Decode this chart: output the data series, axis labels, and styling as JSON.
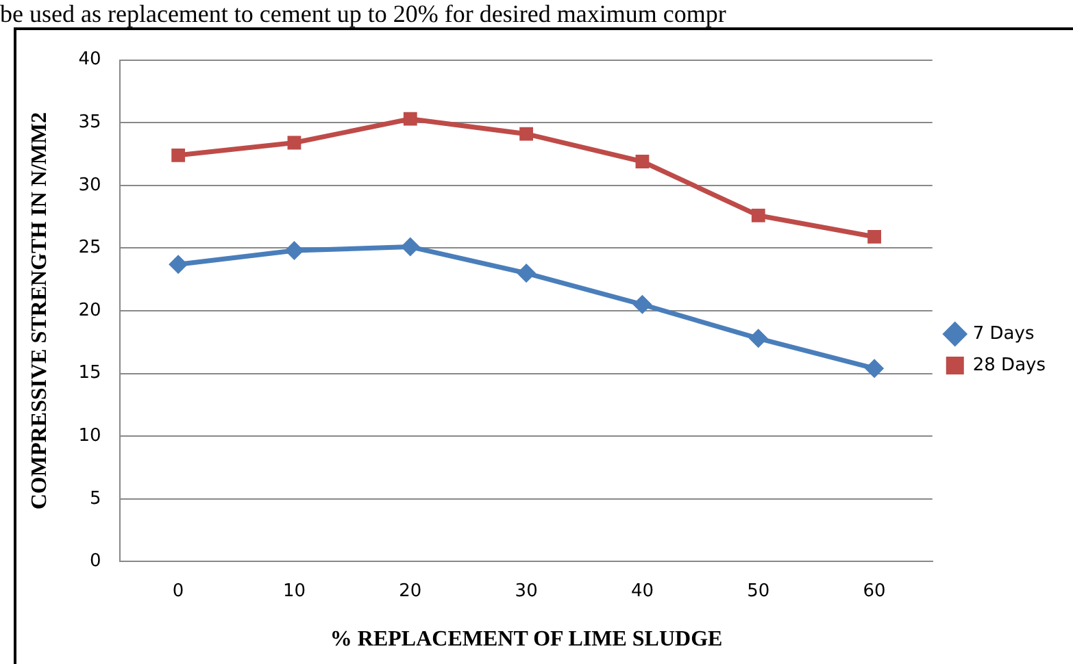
{
  "chart_data": {
    "type": "line",
    "xlabel": "% REPLACEMENT OF LIME SLUDGE",
    "ylabel": "COMPRESSIVE STRENGTH IN N/MM2",
    "annotations": [
      "be used as replacement to cement up to 20% for desired maximum compr"
    ],
    "categories": [
      "0",
      "10",
      "20",
      "30",
      "40",
      "50",
      "60"
    ],
    "series": [
      {
        "name": "7 Days",
        "color": "#4a7ebb",
        "marker": "diamond",
        "values": [
          23.7,
          24.8,
          25.1,
          23.0,
          20.5,
          17.8,
          15.4
        ]
      },
      {
        "name": "28 Days",
        "color": "#be4b48",
        "marker": "square",
        "values": [
          32.4,
          33.4,
          35.3,
          34.1,
          31.9,
          27.6,
          25.9
        ]
      }
    ],
    "ylim": [
      0,
      40
    ],
    "yticks": [
      0,
      5,
      10,
      15,
      20,
      25,
      30,
      35,
      40
    ],
    "grid": "y",
    "legend": "right"
  }
}
